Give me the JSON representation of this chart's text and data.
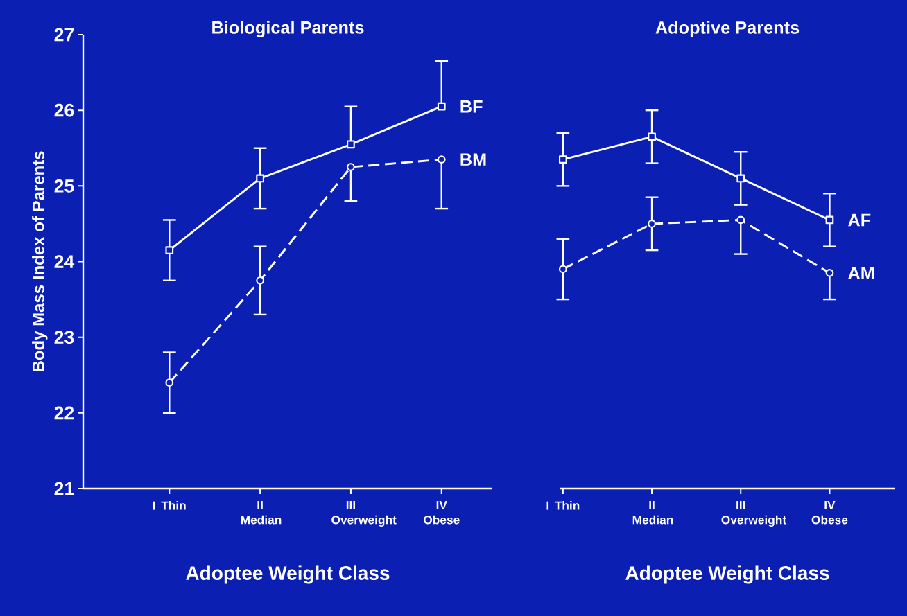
{
  "chart_data": [
    {
      "type": "line",
      "title": "Biological Parents",
      "xlabel": "Adoptee Weight Class",
      "ylabel": "Body Mass Index of Parents",
      "categories": [
        "I Thin",
        "II Median",
        "III Overweight",
        "IV Obese"
      ],
      "ylim": [
        21,
        27
      ],
      "yticks": [
        21,
        22,
        23,
        24,
        25,
        26,
        27
      ],
      "series": [
        {
          "name": "BF",
          "color": "#ffffff",
          "marker": "square",
          "line_style": "solid",
          "values": [
            24.15,
            25.1,
            25.55,
            26.05
          ],
          "errors": [
            0.4,
            0.4,
            [
              25.55,
              26.05
            ],
            [
              26.05,
              26.65
            ]
          ]
        },
        {
          "name": "BM",
          "color": "#ffffff",
          "marker": "circle",
          "line_style": "dashed",
          "values": [
            22.4,
            23.75,
            25.25,
            25.35
          ],
          "errors": [
            0.4,
            0.45,
            [
              24.8,
              25.25
            ],
            [
              24.7,
              25.35
            ]
          ]
        }
      ]
    },
    {
      "type": "line",
      "title": "Adoptive Parents",
      "xlabel": "Adoptee Weight Class",
      "categories": [
        "I Thin",
        "II Median",
        "III Overweight",
        "IV Obese"
      ],
      "ylim": [
        21,
        27
      ],
      "yticks": [
        21,
        22,
        23,
        24,
        25,
        26,
        27
      ],
      "tick_labels": "x",
      "series": [
        {
          "name": "AF",
          "color": "#ffffff",
          "marker": "square",
          "line_style": "solid",
          "values": [
            25.35,
            25.65,
            25.1,
            24.55
          ],
          "errors": [
            0.35,
            0.35,
            0.35,
            0.35
          ]
        },
        {
          "name": "AM",
          "color": "#ffffff",
          "marker": "circle",
          "line_style": "dashed",
          "values": [
            23.9,
            24.5,
            24.55,
            23.85
          ],
          "errors": [
            0.4,
            0.35,
            [
              24.1,
              24.55
            ],
            [
              23.5,
              23.85
            ]
          ]
        }
      ]
    }
  ]
}
